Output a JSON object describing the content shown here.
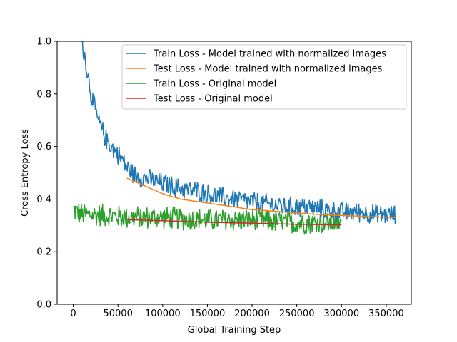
{
  "chart_data": {
    "type": "line",
    "title": "",
    "xlabel": "Global Training Step",
    "ylabel": "Cross Entropy Loss",
    "xlim": [
      -18000,
      378000
    ],
    "ylim": [
      0,
      1.0
    ],
    "x_ticks": [
      0,
      50000,
      100000,
      150000,
      200000,
      250000,
      300000,
      350000
    ],
    "x_tick_labels": [
      "0",
      "50000",
      "100000",
      "150000",
      "200000",
      "250000",
      "300000",
      "350000"
    ],
    "y_ticks": [
      0.0,
      0.2,
      0.4,
      0.6,
      0.8,
      1.0
    ],
    "y_tick_labels": [
      "0.0",
      "0.2",
      "0.4",
      "0.6",
      "0.8",
      "1.0"
    ],
    "grid": false,
    "legend_position": "upper right",
    "series": [
      {
        "name": "Train Loss - Model trained with normalized images",
        "color": "#1f77b4",
        "noisy": true,
        "noise": 0.035,
        "x": [
          10000,
          15000,
          20000,
          25000,
          30000,
          35000,
          40000,
          45000,
          50000,
          55000,
          60000,
          70000,
          80000,
          90000,
          100000,
          120000,
          140000,
          160000,
          180000,
          200000,
          220000,
          240000,
          260000,
          280000,
          300000,
          320000,
          340000,
          360000
        ],
        "y": [
          1.0,
          0.9,
          0.8,
          0.73,
          0.68,
          0.64,
          0.61,
          0.59,
          0.57,
          0.55,
          0.52,
          0.49,
          0.48,
          0.47,
          0.46,
          0.44,
          0.43,
          0.41,
          0.4,
          0.39,
          0.38,
          0.37,
          0.37,
          0.36,
          0.35,
          0.35,
          0.34,
          0.34
        ]
      },
      {
        "name": "Test Loss - Model trained with normalized images",
        "color": "#ff7f0e",
        "noisy": false,
        "x": [
          60000,
          80000,
          100000,
          120000,
          140000,
          160000,
          180000,
          200000,
          220000,
          240000,
          260000,
          280000,
          300000,
          320000,
          340000,
          360000
        ],
        "y": [
          0.48,
          0.45,
          0.42,
          0.4,
          0.39,
          0.38,
          0.37,
          0.36,
          0.355,
          0.35,
          0.345,
          0.34,
          0.338,
          0.335,
          0.332,
          0.33
        ]
      },
      {
        "name": "Train Loss - Original model",
        "color": "#2ca02c",
        "noisy": true,
        "noise": 0.04,
        "x": [
          0,
          10000,
          30000,
          60000,
          100000,
          150000,
          200000,
          250000,
          300000
        ],
        "y": [
          0.36,
          0.34,
          0.34,
          0.33,
          0.33,
          0.32,
          0.32,
          0.31,
          0.31
        ]
      },
      {
        "name": "Test Loss - Original model",
        "color": "#d62728",
        "noisy": false,
        "x": [
          60000,
          100000,
          150000,
          200000,
          250000,
          300000
        ],
        "y": [
          0.322,
          0.318,
          0.312,
          0.308,
          0.304,
          0.302
        ]
      }
    ]
  }
}
